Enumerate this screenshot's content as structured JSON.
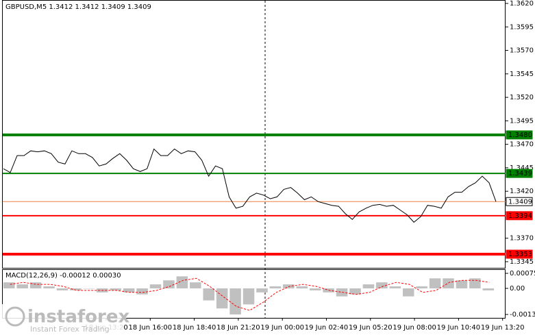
{
  "chart_data": {
    "type": "line",
    "title": "GBPUSD,M5  1.3412 1.3412 1.3409 1.3409",
    "values": [
      1.3444,
      1.344,
      1.3458,
      1.3458,
      1.3463,
      1.3462,
      1.3463,
      1.346,
      1.3451,
      1.3449,
      1.3463,
      1.346,
      1.346,
      1.3456,
      1.3447,
      1.3449,
      1.3455,
      1.346,
      1.3453,
      1.3444,
      1.3441,
      1.3444,
      1.3465,
      1.3458,
      1.3458,
      1.3465,
      1.346,
      1.3463,
      1.3462,
      1.3453,
      1.3436,
      1.3447,
      1.3444,
      1.3414,
      1.3402,
      1.3404,
      1.3414,
      1.3418,
      1.3416,
      1.3412,
      1.3414,
      1.3422,
      1.3424,
      1.3418,
      1.3411,
      1.3414,
      1.3409,
      1.3407,
      1.3405,
      1.3404,
      1.3396,
      1.339,
      1.3398,
      1.3402,
      1.3405,
      1.3406,
      1.3404,
      1.3405,
      1.34,
      1.3395,
      1.3387,
      1.3393,
      1.3405,
      1.3404,
      1.3402,
      1.3414,
      1.3419,
      1.3419,
      1.3425,
      1.3429,
      1.3436,
      1.3429,
      1.3409
    ],
    "color": "#000000",
    "ylim": [
      1.3345,
      1.362
    ],
    "yticks": [
      {
        "value": 1.362,
        "label": "1.3620"
      },
      1.3595,
      {
        "value": 1.357,
        "label": "1.3570"
      },
      1.3545,
      {
        "value": 1.352,
        "label": "1.3520"
      },
      1.3495,
      {
        "value": 1.347,
        "label": "1.3470"
      },
      1.3445,
      {
        "value": 1.342,
        "label": "1.3420"
      },
      {
        "value": 1.337,
        "label": "1.3370"
      },
      1.3345
    ],
    "levels": [
      {
        "value": 1.348,
        "label": "1.3480",
        "color": "#008000",
        "width": 4
      },
      {
        "value": 1.3439,
        "label": "1.3439",
        "color": "#008000",
        "width": 2
      },
      {
        "value": 1.3409,
        "label": "1.3409",
        "color": "#f08040",
        "width": 1
      },
      {
        "value": 1.3394,
        "label": "1.3394",
        "color": "#ff0000",
        "width": 2
      },
      {
        "value": 1.3353,
        "label": "1.3353",
        "color": "#ff0000",
        "width": 4
      }
    ],
    "x_labels": [
      "18 Jun 13:20",
      "18 Jun 16:00",
      "18 Jun 18:40",
      "18 Jun 21:20",
      "19 Jun 00:00",
      "19 Jun 02:40",
      "19 Jun 05:20",
      "19 Jun 08:00",
      "19 Jun 10:40",
      "19 Jun 13:20"
    ],
    "macd": {
      "title": "MACD(12,26,9) -0.00012 0.00030",
      "histogram": [
        0.0003,
        0.0002,
        0.0003,
        0.0001,
        -0.0001,
        -0.0001,
        0,
        -0.0002,
        -0.0001,
        -0.0002,
        -0.0003,
        0.0002,
        0.0004,
        0.0006,
        0.0003,
        -0.0006,
        -0.001,
        -0.0013,
        -0.0008,
        -0.0002,
        0.0001,
        0.0002,
        0.0001,
        -0.0001,
        -0.0002,
        -0.0004,
        -0.0003,
        0.0002,
        0.0003,
        0.0001,
        -0.0004,
        0.0001,
        0.0005,
        0.0005,
        0.0004,
        0.0005,
        -0.0001
      ],
      "histogram_color": "#c0c0c0",
      "signal": [
        0.0002,
        0.0003,
        0.0002,
        0.0002,
        0.0001,
        -0.0001,
        -0.0001,
        -0.0001,
        -0.0001,
        -0.0002,
        -0.0002,
        -0.0001,
        0.0001,
        0.0004,
        0.0005,
        0.0001,
        -0.0004,
        -0.0009,
        -0.0011,
        -0.0007,
        -0.0002,
        0.0001,
        0.0002,
        0.0001,
        -0.0001,
        -0.0002,
        -0.0003,
        -0.0002,
        0.0001,
        0.0003,
        0.0002,
        -0.0002,
        -0.0001,
        0.0003,
        0.0004,
        0.0004,
        0.0003
      ],
      "signal_color": "#ff0000",
      "y2lim": [
        -0.0013,
        0.00075
      ],
      "y2ticks": [
        {
          "value": 0.00075,
          "label": "0.00075"
        },
        {
          "value": 0,
          "label": "0.00"
        },
        -0.0013
      ]
    },
    "logo": {
      "name": "instaforex",
      "tagline": "Instant Forex Trading"
    }
  }
}
